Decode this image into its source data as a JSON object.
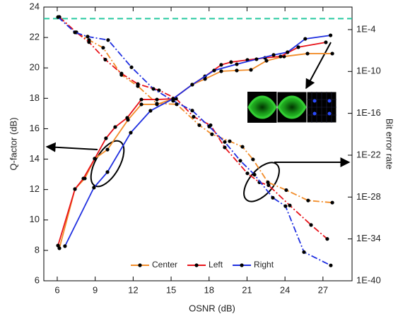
{
  "chart_data": {
    "type": "line",
    "xlabel": "OSNR (dB)",
    "ylabel": "Q-factor (dB)",
    "y2label": "Bit error rate",
    "xlim": [
      4.94,
      29.3
    ],
    "xticks": [
      6,
      9,
      12,
      15,
      18,
      21,
      24,
      27
    ],
    "ylim": [
      6,
      24
    ],
    "yticks": [
      6,
      8,
      10,
      12,
      14,
      16,
      18,
      20,
      22,
      24
    ],
    "y2lim": [
      1e-40,
      0.17
    ],
    "y2scale": "log",
    "y2ticks": [
      {
        "value": 1e-40,
        "label": "1E-40"
      },
      {
        "value": 1e-34,
        "label": "1E-34"
      },
      {
        "value": 1e-28,
        "label": "1E-28"
      },
      {
        "value": 1e-22,
        "label": "1E-22"
      },
      {
        "value": 1e-16,
        "label": "1E-16"
      },
      {
        "value": 1e-10,
        "label": "1E-10"
      },
      {
        "value": 0.0001,
        "label": "1E-4"
      }
    ],
    "marker_color": "#000000",
    "threshold": {
      "value": 0.0038,
      "axis": "y2",
      "color": "#27c9a0"
    },
    "legend": "bottom",
    "series": [
      {
        "name": "Center",
        "color": "#f28c28",
        "x": [
          6.17,
          7.4,
          8.18,
          8.96,
          9.97,
          11.59,
          12.65,
          13.88,
          15.16,
          16.67,
          17.68,
          18.96,
          20.19,
          21.31,
          22.54,
          23.93,
          25.78,
          27.74
        ],
        "values": [
          8.14,
          12.03,
          12.73,
          14.03,
          14.63,
          16.58,
          17.6,
          17.6,
          17.97,
          18.9,
          19.27,
          19.78,
          19.83,
          19.87,
          20.47,
          20.75,
          20.94,
          20.94
        ],
        "ber_x": [
          6.17,
          7.51,
          8.51,
          9.63,
          11.08,
          12.37,
          13.88,
          15.44,
          17.23,
          18.23,
          19.63,
          20.64,
          21.47,
          22.65,
          24.1,
          25.83,
          27.74
        ],
        "ber_values": [
          0.0063,
          4e-05,
          3.2e-06,
          2.5e-07,
          3.2e-11,
          7.9e-13,
          2.5e-15,
          2e-15,
          2e-18,
          1e-19,
          1e-20,
          1.6e-21,
          2.5e-23,
          1.3e-26,
          1e-27,
          3.2e-29,
          1.6e-29
        ]
      },
      {
        "name": "Left",
        "color": "#e8141b",
        "x": [
          6.06,
          7.4,
          8.07,
          8.96,
          9.85,
          10.58,
          11.53,
          12.65,
          13.88,
          15.16,
          16.67,
          17.68,
          18.96,
          19.74,
          21.03,
          22.42,
          23.65,
          25.05,
          27.23
        ],
        "values": [
          8.32,
          12.03,
          12.73,
          14.03,
          15.37,
          16.11,
          16.72,
          17.92,
          17.92,
          17.97,
          18.9,
          19.45,
          20.2,
          20.38,
          20.52,
          20.66,
          20.75,
          21.36,
          21.68
        ],
        "ber_x": [
          6.17,
          7.51,
          8.51,
          9.8,
          11.08,
          12.37,
          14.04,
          15.39,
          16.78,
          18.12,
          19.24,
          21.03,
          21.98,
          22.7,
          24.38,
          26.06,
          27.34
        ],
        "ber_values": [
          0.0063,
          4e-05,
          1.6e-06,
          5e-09,
          5e-11,
          1.6e-12,
          2e-13,
          1.3e-14,
          3.2e-17,
          2e-18,
          1.3e-21,
          2.5e-25,
          1.3e-26,
          5e-27,
          6.3e-30,
          1e-32,
          1e-34
        ]
      },
      {
        "name": "Right",
        "color": "#1f2fe0",
        "x": [
          6.61,
          8.9,
          9.97,
          11.81,
          13.37,
          15.16,
          16.67,
          18.4,
          20.19,
          21.75,
          23.1,
          24.2,
          25.6,
          27.6
        ],
        "values": [
          8.28,
          12.13,
          13.15,
          15.74,
          17.18,
          17.97,
          18.9,
          19.83,
          20.24,
          20.57,
          20.85,
          21.03,
          21.91,
          22.14
        ],
        "ber_x": [
          6.06,
          7.4,
          8.4,
          10.02,
          11.87,
          13.6,
          15.16,
          16.67,
          18.01,
          19.24,
          20.47,
          21.59,
          23.04,
          24.04,
          25.5,
          27.62
        ],
        "ber_values": [
          0.0063,
          4e-05,
          1e-05,
          3.2e-06,
          4e-10,
          3.2e-13,
          6.3e-15,
          2.5e-16,
          1.3e-18,
          7.9e-21,
          1.6e-23,
          1.6e-25,
          7.9e-29,
          5e-30,
          1.3e-36,
          1.6e-38
        ]
      }
    ]
  }
}
